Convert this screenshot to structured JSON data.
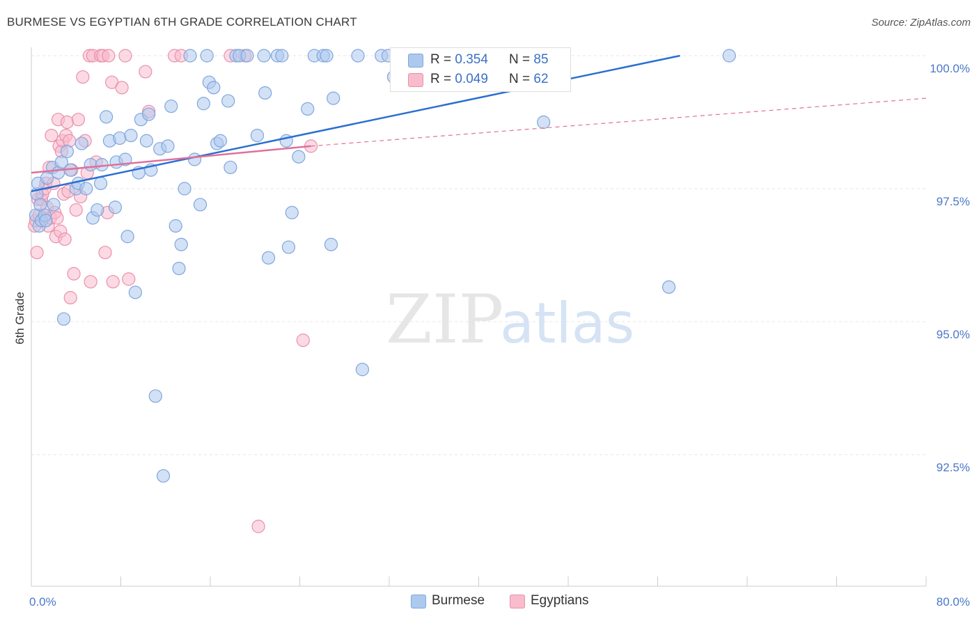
{
  "title": "BURMESE VS EGYPTIAN 6TH GRADE CORRELATION CHART",
  "source": "Source: ZipAtlas.com",
  "watermark": "ZIPatlas",
  "colors": {
    "burmese_fill": "#aec9ee",
    "burmese_stroke": "#7ea6dc",
    "burmese_line": "#2a6fd1",
    "egyptian_fill": "#f8bccd",
    "egyptian_stroke": "#ea8fab",
    "egyptian_line": "#e0709a",
    "tick_text": "#4a78c8"
  },
  "legend": {
    "rows": [
      {
        "r_label": "R =",
        "r_value": "0.354",
        "n_label": "N =",
        "n_value": "85"
      },
      {
        "r_label": "R =",
        "r_value": "0.049",
        "n_label": "N =",
        "n_value": "62"
      }
    ]
  },
  "bottom_legend": [
    "Burmese",
    "Egyptians"
  ],
  "chart_data": {
    "type": "scatter",
    "title": "BURMESE VS EGYPTIAN 6TH GRADE CORRELATION CHART",
    "xlabel": "",
    "ylabel": "6th Grade",
    "xlim": [
      0,
      80
    ],
    "ylim": [
      90.25,
      100.4
    ],
    "x_tick_labels": [
      {
        "value": 0,
        "label": "0.0%"
      },
      {
        "value": 80,
        "label": "80.0%"
      }
    ],
    "y_tick_labels": [
      {
        "value": 100,
        "label": "100.0%"
      },
      {
        "value": 97.5,
        "label": "97.5%"
      },
      {
        "value": 95,
        "label": "95.0%"
      },
      {
        "value": 92.5,
        "label": "92.5%"
      }
    ],
    "x_minor_ticks": [
      0,
      8,
      16,
      24,
      32,
      40,
      48,
      56,
      64,
      72,
      80
    ],
    "series": [
      {
        "name": "Burmese",
        "r": 0.354,
        "n": 85,
        "trend": {
          "x0": 0,
          "y0": 97.45,
          "x1": 58.0,
          "y1": 100.0,
          "style": "solid"
        },
        "points": [
          [
            0.4,
            97.0
          ],
          [
            0.5,
            97.4
          ],
          [
            0.6,
            97.6
          ],
          [
            0.7,
            96.8
          ],
          [
            0.8,
            97.2
          ],
          [
            0.9,
            96.9
          ],
          [
            1.2,
            97.0
          ],
          [
            1.3,
            96.9
          ],
          [
            1.4,
            97.7
          ],
          [
            1.9,
            97.9
          ],
          [
            2.0,
            97.2
          ],
          [
            2.4,
            97.8
          ],
          [
            2.7,
            98.0
          ],
          [
            2.9,
            95.05
          ],
          [
            3.2,
            98.2
          ],
          [
            3.5,
            97.85
          ],
          [
            4.0,
            97.5
          ],
          [
            4.2,
            97.6
          ],
          [
            4.5,
            98.35
          ],
          [
            4.9,
            97.5
          ],
          [
            5.3,
            97.95
          ],
          [
            5.5,
            96.95
          ],
          [
            5.9,
            97.1
          ],
          [
            6.2,
            97.6
          ],
          [
            6.3,
            97.95
          ],
          [
            6.7,
            98.85
          ],
          [
            7.0,
            98.4
          ],
          [
            7.5,
            97.15
          ],
          [
            7.6,
            98.0
          ],
          [
            7.9,
            98.45
          ],
          [
            8.4,
            98.05
          ],
          [
            8.6,
            96.6
          ],
          [
            8.9,
            98.5
          ],
          [
            9.3,
            95.55
          ],
          [
            9.6,
            97.8
          ],
          [
            9.8,
            98.8
          ],
          [
            10.3,
            98.4
          ],
          [
            10.5,
            98.9
          ],
          [
            10.7,
            97.85
          ],
          [
            11.1,
            93.6
          ],
          [
            11.5,
            98.25
          ],
          [
            11.8,
            92.1
          ],
          [
            12.2,
            98.3
          ],
          [
            12.5,
            99.05
          ],
          [
            12.9,
            96.8
          ],
          [
            13.2,
            96.0
          ],
          [
            13.4,
            96.45
          ],
          [
            13.7,
            97.5
          ],
          [
            14.2,
            100.0
          ],
          [
            14.6,
            98.05
          ],
          [
            15.1,
            97.2
          ],
          [
            15.4,
            99.1
          ],
          [
            15.7,
            100.0
          ],
          [
            15.9,
            99.5
          ],
          [
            16.3,
            99.4
          ],
          [
            16.6,
            98.35
          ],
          [
            16.9,
            98.4
          ],
          [
            17.6,
            99.15
          ],
          [
            17.8,
            97.9
          ],
          [
            18.3,
            100.0
          ],
          [
            18.6,
            100.0
          ],
          [
            19.3,
            100.0
          ],
          [
            20.2,
            98.5
          ],
          [
            20.8,
            100.0
          ],
          [
            20.9,
            99.3
          ],
          [
            21.2,
            96.2
          ],
          [
            22.0,
            100.0
          ],
          [
            22.4,
            100.0
          ],
          [
            22.8,
            98.4
          ],
          [
            23.0,
            96.4
          ],
          [
            23.3,
            97.05
          ],
          [
            23.9,
            98.1
          ],
          [
            24.7,
            99.0
          ],
          [
            25.3,
            100.0
          ],
          [
            26.1,
            100.0
          ],
          [
            26.4,
            100.0
          ],
          [
            26.8,
            96.45
          ],
          [
            27.0,
            99.2
          ],
          [
            29.2,
            100.0
          ],
          [
            29.6,
            94.1
          ],
          [
            31.3,
            100.0
          ],
          [
            31.9,
            100.0
          ],
          [
            32.4,
            99.6
          ],
          [
            45.8,
            98.75
          ],
          [
            57.0,
            95.65
          ],
          [
            62.4,
            100.0
          ]
        ]
      },
      {
        "name": "Egyptians",
        "r": 0.049,
        "n": 62,
        "trend": {
          "x0": 0,
          "y0": 97.8,
          "x1": 25.0,
          "y1": 98.3,
          "style": "solid",
          "dashed_to_x": 80,
          "dashed_to_y": 99.2
        },
        "points": [
          [
            0.3,
            96.8
          ],
          [
            0.4,
            96.9
          ],
          [
            0.5,
            96.3
          ],
          [
            0.6,
            97.3
          ],
          [
            0.7,
            97.0
          ],
          [
            0.9,
            97.3
          ],
          [
            1.0,
            97.4
          ],
          [
            1.1,
            96.95
          ],
          [
            1.2,
            97.5
          ],
          [
            1.3,
            97.6
          ],
          [
            1.4,
            97.15
          ],
          [
            1.5,
            96.8
          ],
          [
            1.6,
            97.9
          ],
          [
            1.7,
            96.95
          ],
          [
            1.8,
            98.5
          ],
          [
            2.0,
            97.6
          ],
          [
            2.1,
            97.05
          ],
          [
            2.2,
            96.6
          ],
          [
            2.3,
            96.95
          ],
          [
            2.4,
            98.8
          ],
          [
            2.5,
            98.3
          ],
          [
            2.6,
            96.7
          ],
          [
            2.7,
            98.2
          ],
          [
            2.8,
            98.4
          ],
          [
            2.9,
            97.4
          ],
          [
            3.0,
            96.55
          ],
          [
            3.1,
            98.5
          ],
          [
            3.2,
            98.75
          ],
          [
            3.3,
            97.45
          ],
          [
            3.4,
            98.4
          ],
          [
            3.5,
            95.45
          ],
          [
            3.6,
            97.85
          ],
          [
            3.8,
            95.9
          ],
          [
            4.0,
            97.1
          ],
          [
            4.2,
            98.8
          ],
          [
            4.4,
            97.35
          ],
          [
            4.6,
            99.6
          ],
          [
            4.8,
            98.4
          ],
          [
            5.0,
            97.8
          ],
          [
            5.2,
            100.0
          ],
          [
            5.3,
            95.75
          ],
          [
            5.5,
            100.0
          ],
          [
            5.8,
            98.0
          ],
          [
            6.2,
            100.0
          ],
          [
            6.4,
            100.0
          ],
          [
            6.6,
            96.3
          ],
          [
            6.8,
            97.05
          ],
          [
            6.9,
            100.0
          ],
          [
            7.2,
            99.5
          ],
          [
            7.3,
            95.75
          ],
          [
            8.1,
            99.4
          ],
          [
            8.4,
            100.0
          ],
          [
            8.7,
            95.8
          ],
          [
            10.2,
            99.7
          ],
          [
            10.5,
            98.95
          ],
          [
            12.8,
            100.0
          ],
          [
            13.4,
            100.0
          ],
          [
            17.8,
            100.0
          ],
          [
            19.1,
            100.0
          ],
          [
            20.3,
            91.15
          ],
          [
            24.3,
            94.65
          ],
          [
            25.0,
            98.3
          ]
        ]
      }
    ]
  }
}
